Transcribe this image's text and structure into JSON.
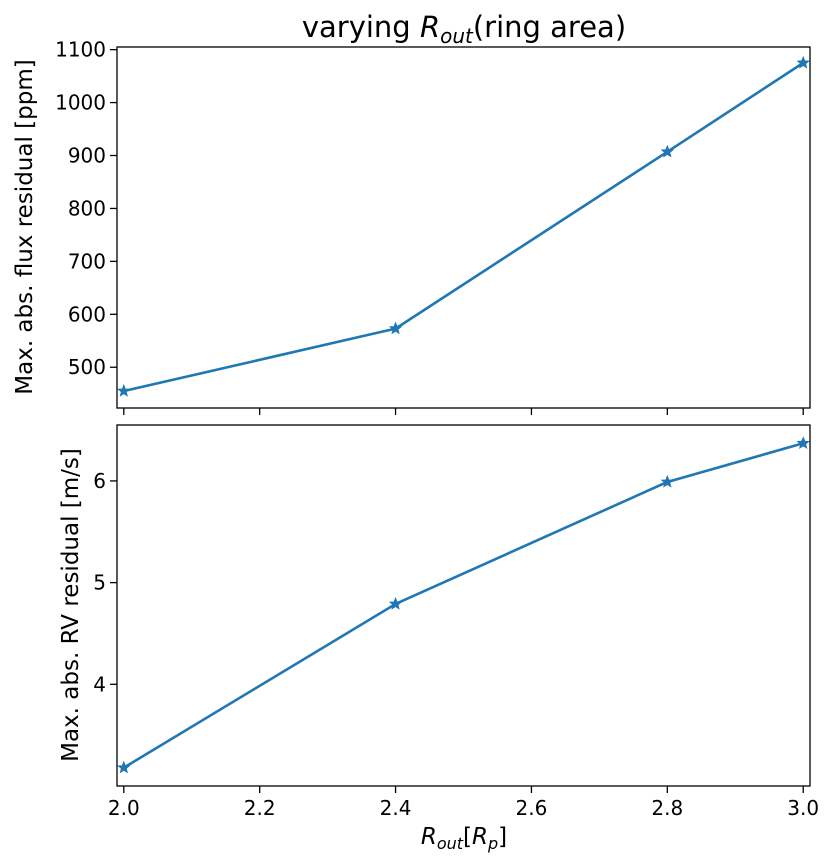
{
  "chart_data": {
    "type": "line",
    "title_prefix": "varying ",
    "title_symbol": "R",
    "title_subscript": "out",
    "title_suffix": "(ring area)",
    "xlabel_symbol": "R",
    "xlabel_subscript": "out",
    "xlabel_bracket_open": "[",
    "xlabel_inner_symbol": "R",
    "xlabel_inner_subscript": "p",
    "xlabel_bracket_close": "]",
    "x": [
      2.0,
      2.4,
      2.8,
      3.0
    ],
    "xlim": [
      1.99,
      3.01
    ],
    "xticks": [
      2.0,
      2.2,
      2.4,
      2.6,
      2.8,
      3.0
    ],
    "xtick_labels": [
      "2.0",
      "2.2",
      "2.4",
      "2.6",
      "2.8",
      "3.0"
    ],
    "color": "#1f77b4",
    "marker": "star",
    "subplots": [
      {
        "ylabel": "Max. abs. flux residual [ppm]",
        "values": [
          455,
          573,
          907,
          1075
        ],
        "ylim": [
          423,
          1105
        ],
        "yticks": [
          500,
          600,
          700,
          800,
          900,
          1000,
          1100
        ],
        "ytick_labels": [
          "500",
          "600",
          "700",
          "800",
          "900",
          "1000",
          "1100"
        ],
        "show_xtick_labels": false
      },
      {
        "ylabel": "Max. abs. RV residual [m/s]",
        "values": [
          3.18,
          4.79,
          5.99,
          6.37
        ],
        "ylim": [
          3.0,
          6.55
        ],
        "yticks": [
          4,
          5,
          6
        ],
        "ytick_labels": [
          "4",
          "5",
          "6"
        ],
        "show_xtick_labels": true
      }
    ]
  }
}
